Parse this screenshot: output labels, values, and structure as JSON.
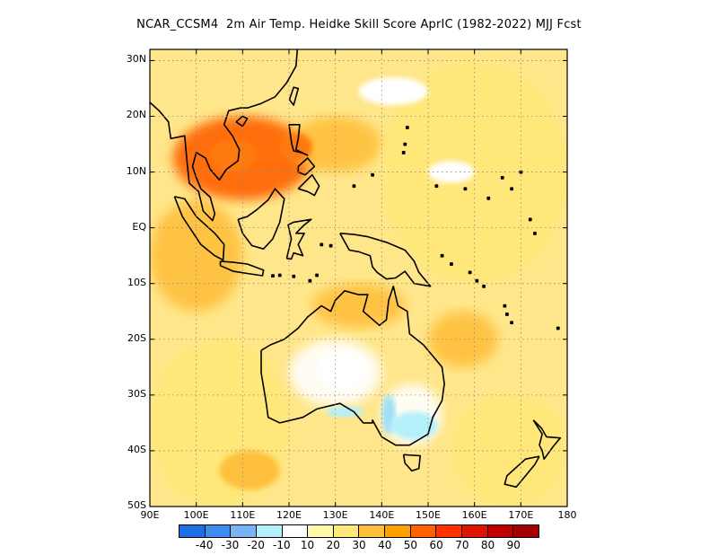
{
  "title": "NCAR_CCSM4  2m Air Temp. Heidke Skill Score AprIC (1982-2022) MJJ Fcst",
  "map": {
    "region": "Maritime Continent / Australia",
    "lon_range": [
      90,
      180
    ],
    "lat_range": [
      -50,
      32
    ],
    "grid": "dotted",
    "lat_ticks": [
      {
        "value": 30,
        "label": "30N"
      },
      {
        "value": 20,
        "label": "20N"
      },
      {
        "value": 10,
        "label": "10N"
      },
      {
        "value": 0,
        "label": "EQ"
      },
      {
        "value": -10,
        "label": "10S"
      },
      {
        "value": -20,
        "label": "20S"
      },
      {
        "value": -30,
        "label": "30S"
      },
      {
        "value": -40,
        "label": "40S"
      },
      {
        "value": -50,
        "label": "50S"
      }
    ],
    "lon_ticks": [
      {
        "value": 90,
        "label": "90E"
      },
      {
        "value": 100,
        "label": "100E"
      },
      {
        "value": 110,
        "label": "110E"
      },
      {
        "value": 120,
        "label": "120E"
      },
      {
        "value": 130,
        "label": "130E"
      },
      {
        "value": 140,
        "label": "140E"
      },
      {
        "value": 150,
        "label": "150E"
      },
      {
        "value": 160,
        "label": "160E"
      },
      {
        "value": 170,
        "label": "170E"
      },
      {
        "value": 180,
        "label": "180"
      }
    ]
  },
  "colorbar": {
    "colors": [
      "#1e6ee6",
      "#3c8cf0",
      "#78b4f5",
      "#b4f0fa",
      "#ffffff",
      "#fffaaa",
      "#ffe878",
      "#ffc03c",
      "#ffa000",
      "#ff6000",
      "#ff3200",
      "#e11400",
      "#c00000",
      "#a50000"
    ],
    "labels": [
      "-40",
      "-30",
      "-20",
      "-10",
      "10",
      "20",
      "30",
      "40",
      "50",
      "60",
      "70",
      "80",
      "90"
    ]
  },
  "chart_data": {
    "type": "heatmap",
    "title": "NCAR_CCSM4  2m Air Temp. Heidke Skill Score AprIC (1982-2022) MJJ Fcst",
    "x_range": [
      90,
      180
    ],
    "y_range": [
      -50,
      32
    ],
    "levels": [
      -40,
      -30,
      -20,
      -10,
      10,
      20,
      30,
      40,
      50,
      60,
      70,
      80,
      90
    ],
    "features": [
      {
        "region": "Indochina / South China Sea",
        "lon": [
          95,
          125
        ],
        "lat": [
          5,
          20
        ],
        "value": 50
      },
      {
        "region": "Philippine Sea",
        "lon": [
          120,
          140
        ],
        "lat": [
          10,
          20
        ],
        "value": 30
      },
      {
        "region": "Eastern Indian Ocean",
        "lon": [
          90,
          110
        ],
        "lat": [
          -15,
          5
        ],
        "value": 30
      },
      {
        "region": "Western Pacific",
        "lon": [
          140,
          180
        ],
        "lat": [
          -10,
          30
        ],
        "value": 20
      },
      {
        "region": "Northern Australia",
        "lon": [
          125,
          145
        ],
        "lat": [
          -18,
          -10
        ],
        "value": 30
      },
      {
        "region": "Interior Australia",
        "lon": [
          120,
          140
        ],
        "lat": [
          -32,
          -20
        ],
        "value": 0
      },
      {
        "region": "Southeast Australia",
        "lon": [
          140,
          153
        ],
        "lat": [
          -39,
          -28
        ],
        "value": -10
      },
      {
        "region": "Coral Sea",
        "lon": [
          150,
          165
        ],
        "lat": [
          -25,
          -15
        ],
        "value": 30
      },
      {
        "region": "Southern Indian Ocean",
        "lon": [
          90,
          120
        ],
        "lat": [
          -50,
          -20
        ],
        "value": 20
      },
      {
        "region": "Tasman Sea / New Zealand",
        "lon": [
          155,
          180
        ],
        "lat": [
          -50,
          -30
        ],
        "value": 20
      }
    ]
  }
}
